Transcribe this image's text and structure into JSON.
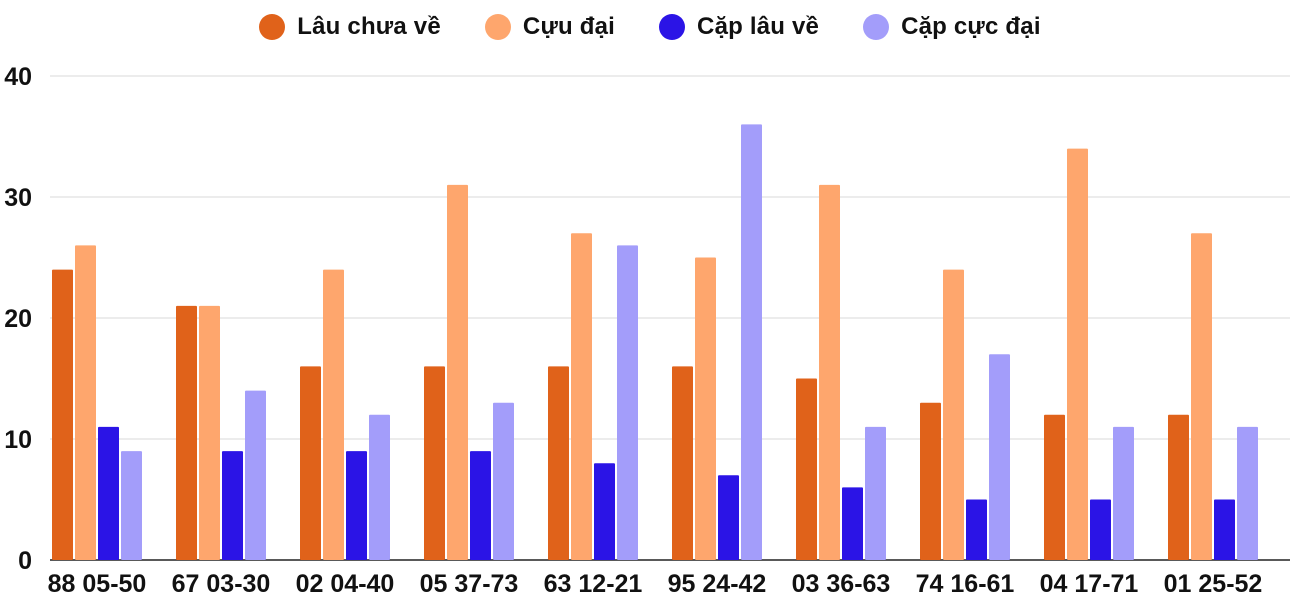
{
  "chart_data": {
    "type": "bar",
    "title": "",
    "xlabel": "",
    "ylabel": "",
    "ylim": [
      0,
      40
    ],
    "yticks": [
      0,
      10,
      20,
      30,
      40
    ],
    "grid": true,
    "legend_position": "top-center",
    "categories": [
      "88 05-50",
      "67 03-30",
      "02 04-40",
      "05 37-73",
      "63 12-21",
      "95 24-42",
      "03 36-63",
      "74 16-61",
      "04 17-71",
      "01 25-52"
    ],
    "series": [
      {
        "name": "Lâu chưa về",
        "color": "#e0621a",
        "values": [
          24,
          21,
          16,
          16,
          16,
          16,
          15,
          13,
          12,
          12
        ]
      },
      {
        "name": "Cựu đại",
        "color": "#fea66d",
        "values": [
          26,
          21,
          24,
          31,
          27,
          25,
          31,
          24,
          34,
          27
        ]
      },
      {
        "name": "Cặp lâu về",
        "color": "#2b14e6",
        "values": [
          11,
          9,
          9,
          9,
          8,
          7,
          6,
          5,
          5,
          5
        ]
      },
      {
        "name": "Cặp cực đại",
        "color": "#a39dfa",
        "values": [
          9,
          14,
          12,
          13,
          26,
          36,
          11,
          17,
          11,
          11
        ]
      }
    ]
  }
}
